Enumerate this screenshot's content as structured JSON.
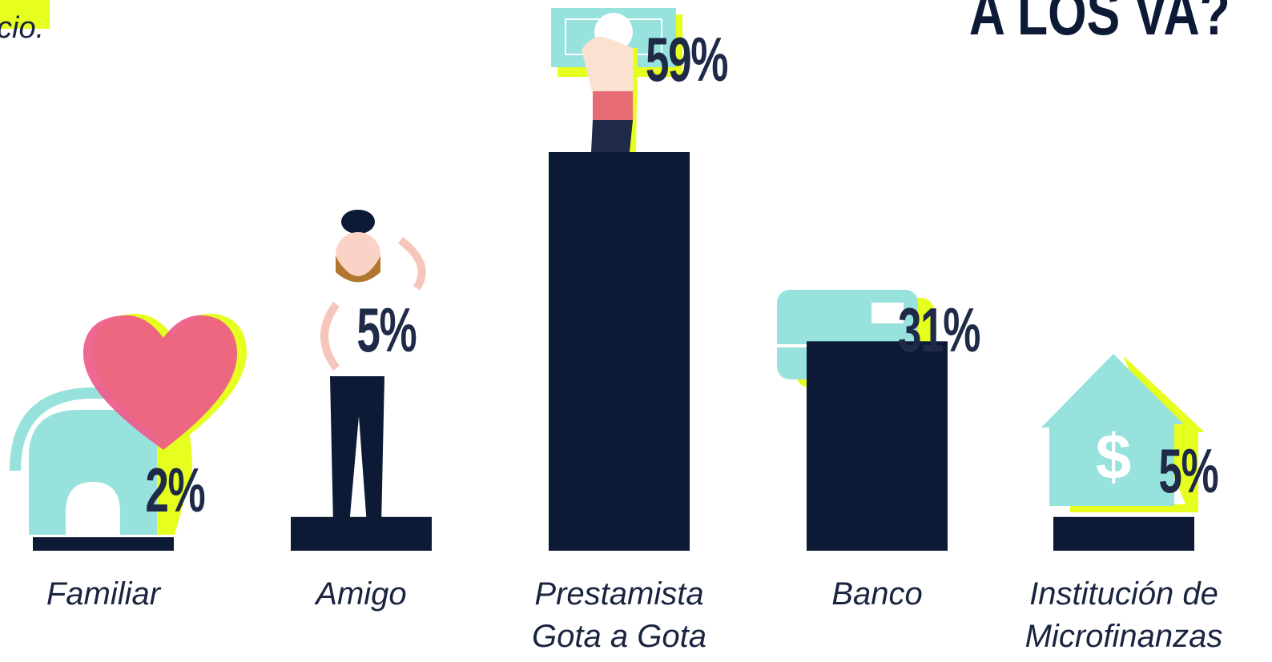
{
  "chart_data": {
    "type": "bar",
    "title": "A LOS VA?",
    "subtitle": "cio.",
    "categories": [
      "Familiar",
      "Amigo",
      "Prestamista Gota a Gota",
      "Banco",
      "Institución de Microfinanzas"
    ],
    "values": [
      2,
      5,
      59,
      31,
      5
    ],
    "value_labels": [
      "2%",
      "5%",
      "59%",
      "31%",
      "5%"
    ],
    "color": "#0d1a36"
  }
}
